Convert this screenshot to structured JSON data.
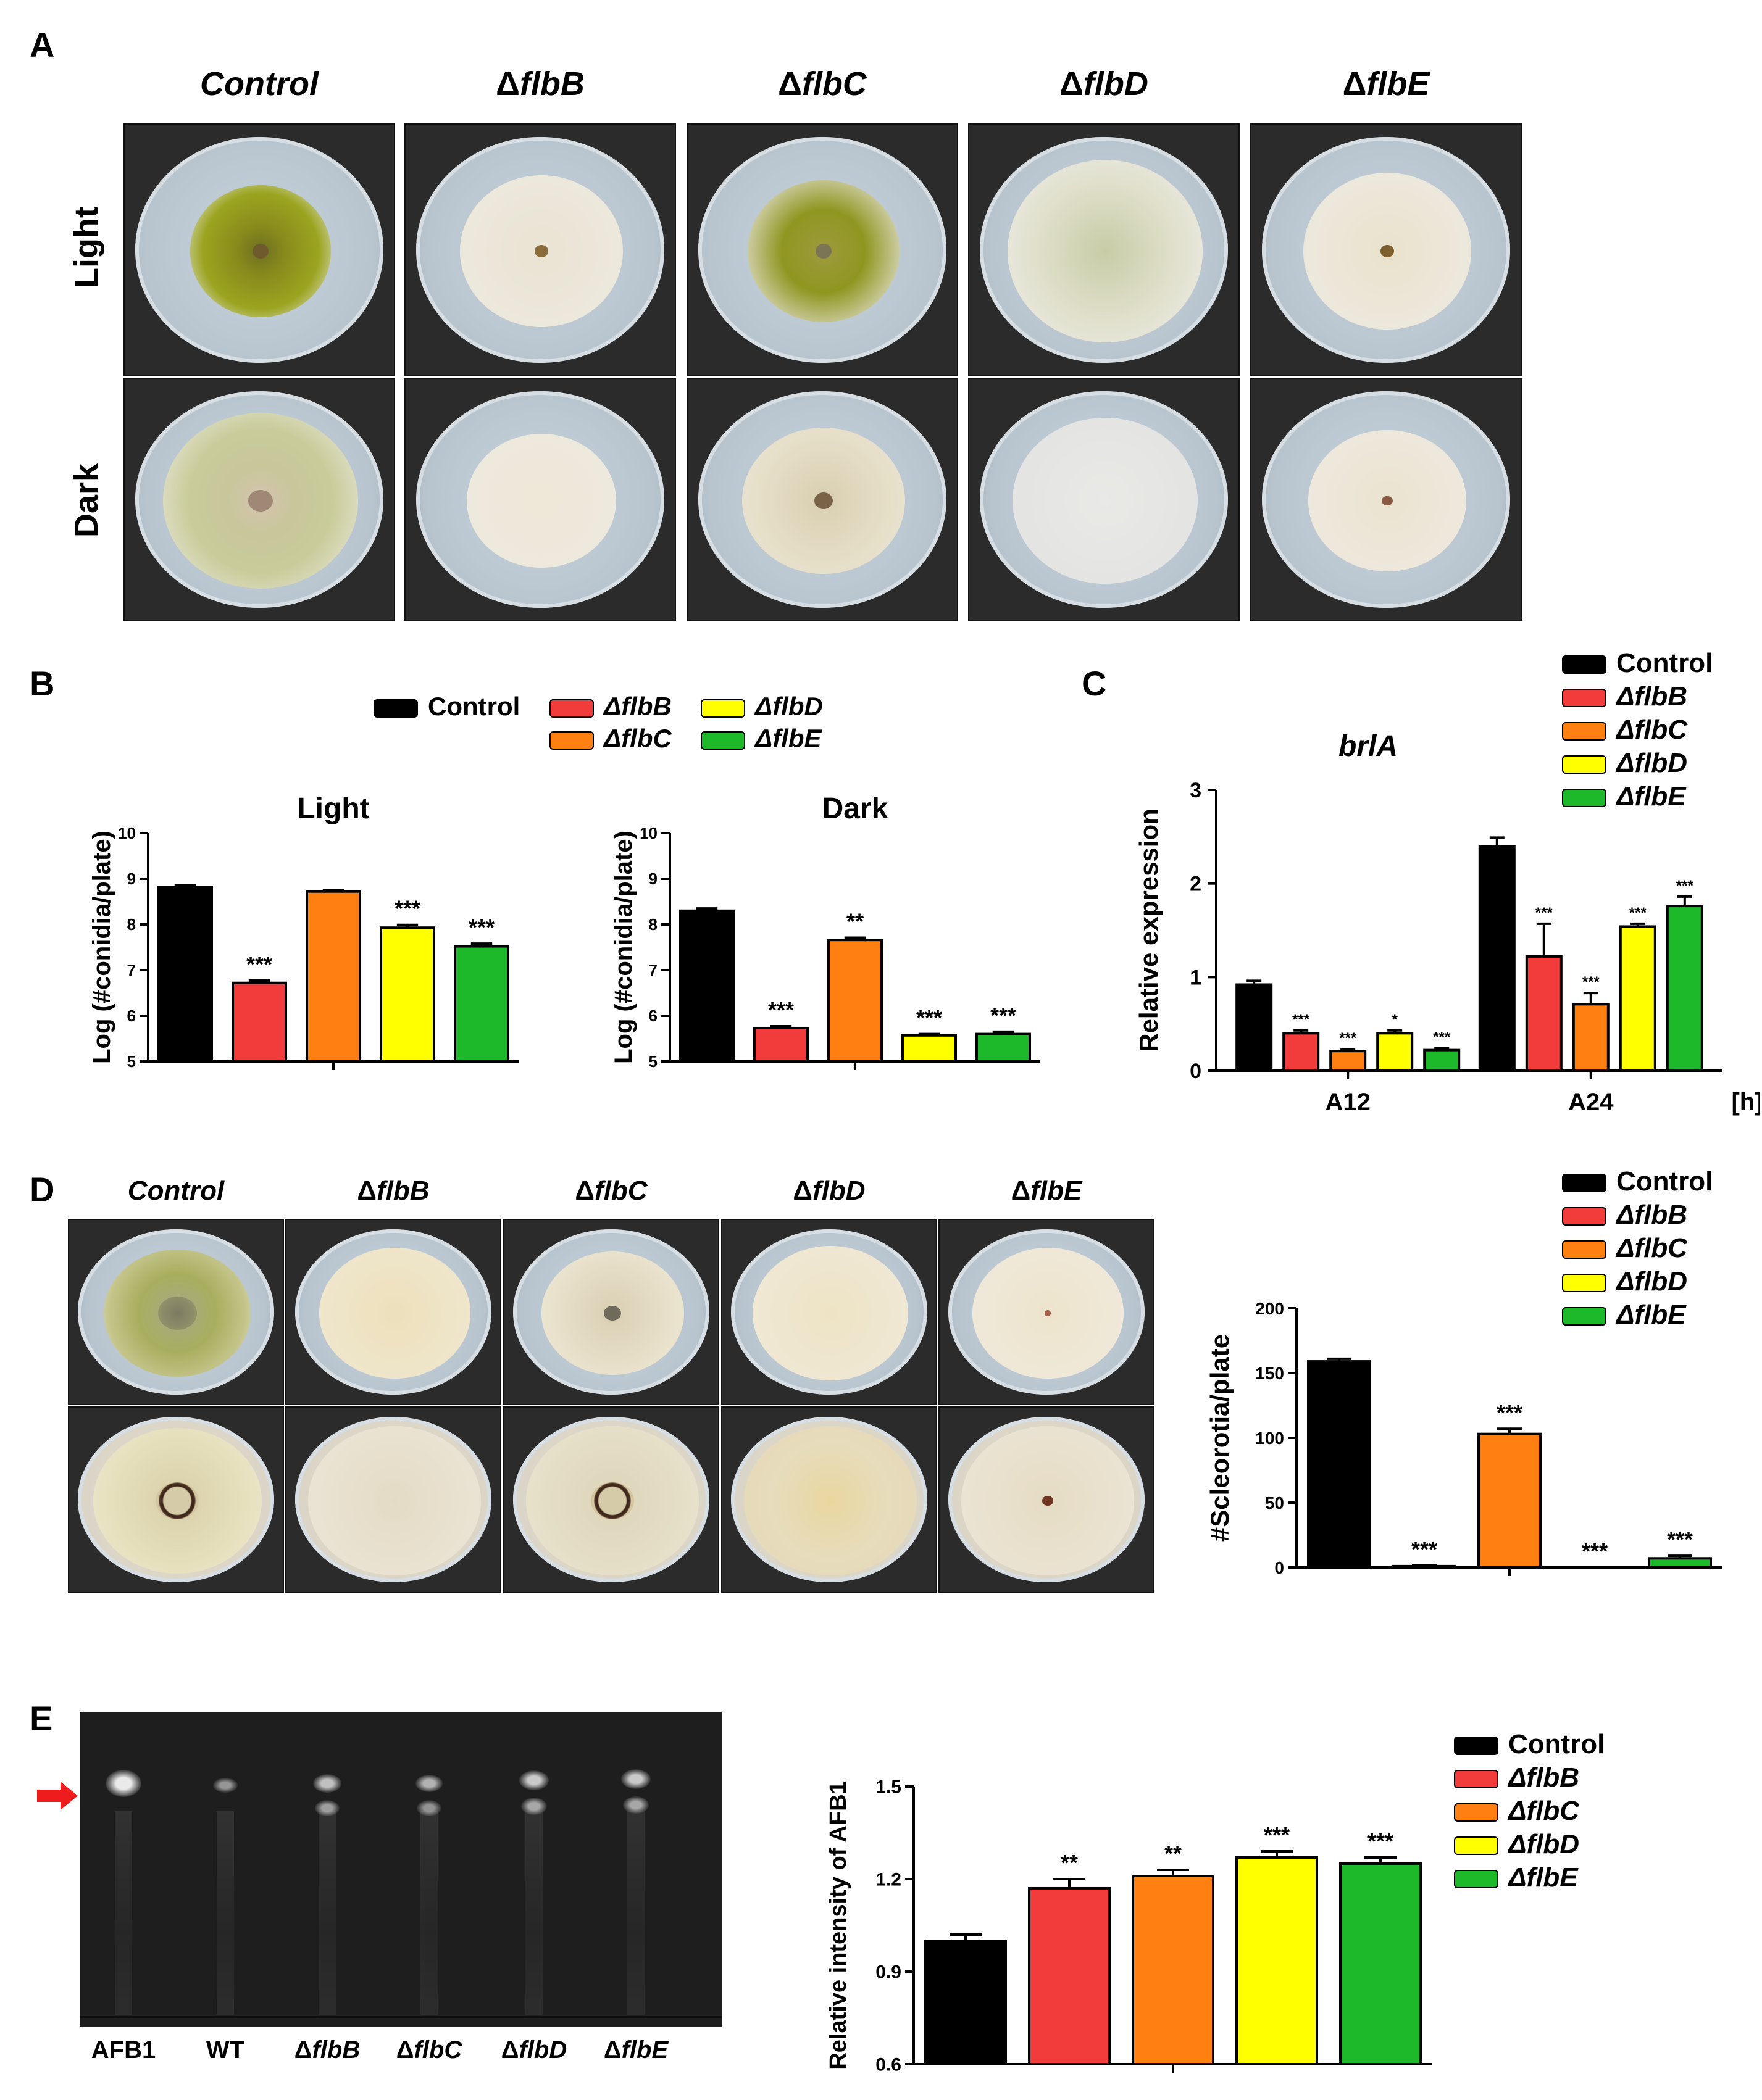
{
  "panels": {
    "A": "A",
    "B": "B",
    "C": "C",
    "D": "D",
    "E": "E"
  },
  "colors": {
    "control": "#000000",
    "flbB": "#f23c3c",
    "flbC": "#ff7f10",
    "flbD": "#ffff00",
    "flbE": "#1eb92a"
  },
  "strains": [
    {
      "prefix": "",
      "name": "Control"
    },
    {
      "prefix": "Δ",
      "name": "flbB"
    },
    {
      "prefix": "Δ",
      "name": "flbC"
    },
    {
      "prefix": "Δ",
      "name": "flbD"
    },
    {
      "prefix": "Δ",
      "name": "flbE"
    }
  ],
  "panelA": {
    "rows": [
      "Light",
      "Dark"
    ]
  },
  "panelB": {
    "legend": [
      "Control",
      "ΔflbB",
      "ΔflbC",
      "ΔflbD",
      "ΔflbE"
    ],
    "charts": [
      {
        "title": "Light",
        "ylabel": "Log (#conidia/plate)",
        "ylim": [
          5,
          10
        ],
        "ticks": [
          "5",
          "6",
          "7",
          "8",
          "9",
          "10"
        ],
        "values": [
          8.82,
          6.72,
          8.72,
          7.93,
          7.52
        ],
        "errors": [
          0.04,
          0.05,
          0.03,
          0.06,
          0.06
        ],
        "sig": [
          "",
          "***",
          "",
          "***",
          "***"
        ]
      },
      {
        "title": "Dark",
        "ylabel": "Log (#conidia/plate)",
        "ylim": [
          5,
          10
        ],
        "ticks": [
          "5",
          "6",
          "7",
          "8",
          "9",
          "10"
        ],
        "values": [
          8.3,
          5.73,
          7.66,
          5.57,
          5.6
        ],
        "errors": [
          0.05,
          0.04,
          0.05,
          0.03,
          0.05
        ],
        "sig": [
          "",
          "***",
          "**",
          "***",
          "***"
        ]
      }
    ]
  },
  "chart_data": [
    {
      "type": "bar",
      "title": "Light",
      "xlabel": "",
      "ylabel": "Log (#conidia/plate)",
      "ylim": [
        5,
        10
      ],
      "categories": [
        "Control",
        "ΔflbB",
        "ΔflbC",
        "ΔflbD",
        "ΔflbE"
      ],
      "values": [
        8.82,
        6.72,
        8.72,
        7.93,
        7.52
      ]
    },
    {
      "type": "bar",
      "title": "Dark",
      "xlabel": "",
      "ylabel": "Log (#conidia/plate)",
      "ylim": [
        5,
        10
      ],
      "categories": [
        "Control",
        "ΔflbB",
        "ΔflbC",
        "ΔflbD",
        "ΔflbE"
      ],
      "values": [
        8.3,
        5.73,
        7.66,
        5.57,
        5.6
      ]
    },
    {
      "type": "bar",
      "title": "brlA",
      "xlabel": "[h]",
      "ylabel": "Relative expression",
      "ylim": [
        0,
        3
      ],
      "categories": [
        "A12",
        "A24"
      ],
      "series": [
        {
          "name": "Control",
          "values": [
            0.92,
            2.4
          ]
        },
        {
          "name": "ΔflbB",
          "values": [
            0.4,
            1.22
          ]
        },
        {
          "name": "ΔflbC",
          "values": [
            0.21,
            0.71
          ]
        },
        {
          "name": "ΔflbD",
          "values": [
            0.4,
            1.54
          ]
        },
        {
          "name": "ΔflbE",
          "values": [
            0.22,
            1.76
          ]
        }
      ]
    },
    {
      "type": "bar",
      "title": "",
      "xlabel": "",
      "ylabel": "#Scleorotia/plate",
      "ylim": [
        0,
        200
      ],
      "categories": [
        "Control",
        "ΔflbB",
        "ΔflbC",
        "ΔflbD",
        "ΔflbE"
      ],
      "values": [
        159,
        1,
        103,
        0,
        7
      ]
    },
    {
      "type": "bar",
      "title": "",
      "xlabel": "",
      "ylabel": "Relative intensity of AFB1",
      "ylim": [
        0.6,
        1.5
      ],
      "categories": [
        "Control",
        "ΔflbB",
        "ΔflbC",
        "ΔflbD",
        "ΔflbE"
      ],
      "values": [
        1.0,
        1.17,
        1.21,
        1.27,
        1.25
      ]
    }
  ],
  "panelC": {
    "title": "brlA",
    "ylabel": "Relative expression",
    "ylim": [
      0,
      3
    ],
    "ticks": [
      "0",
      "1",
      "2",
      "3"
    ],
    "groups": [
      "A12",
      "A24"
    ],
    "unit": "[h]",
    "values": [
      [
        0.92,
        0.4,
        0.21,
        0.4,
        0.22
      ],
      [
        2.4,
        1.22,
        0.71,
        1.54,
        1.76
      ]
    ],
    "errors": [
      [
        0.04,
        0.03,
        0.02,
        0.03,
        0.02
      ],
      [
        0.09,
        0.35,
        0.12,
        0.03,
        0.1
      ]
    ],
    "sig": [
      [
        "",
        "***",
        "***",
        "*",
        "***"
      ],
      [
        "",
        "***",
        "***",
        "***",
        "***"
      ]
    ]
  },
  "panelD": {
    "ylabel": "#Scleorotia/plate",
    "ylim": [
      0,
      200
    ],
    "ticks": [
      "0",
      "50",
      "100",
      "150",
      "200"
    ],
    "values": [
      159,
      1,
      103,
      0,
      7
    ],
    "errors": [
      2,
      0.5,
      4,
      0,
      2
    ],
    "sig": [
      "",
      "***",
      "***",
      "***",
      "***"
    ]
  },
  "panelE": {
    "gel_labels": [
      "AFB1",
      "WT",
      "ΔflbB",
      "ΔflbC",
      "ΔflbD",
      "ΔflbE"
    ],
    "ylabel": "Relative intensity of AFB1",
    "ylim": [
      0.6,
      1.5
    ],
    "ticks": [
      "0.6",
      "0.9",
      "1.2",
      "1.5"
    ],
    "values": [
      1.0,
      1.17,
      1.21,
      1.27,
      1.25
    ],
    "errors": [
      0.02,
      0.03,
      0.02,
      0.02,
      0.02
    ],
    "sig": [
      "",
      "**",
      "**",
      "***",
      "***"
    ]
  }
}
